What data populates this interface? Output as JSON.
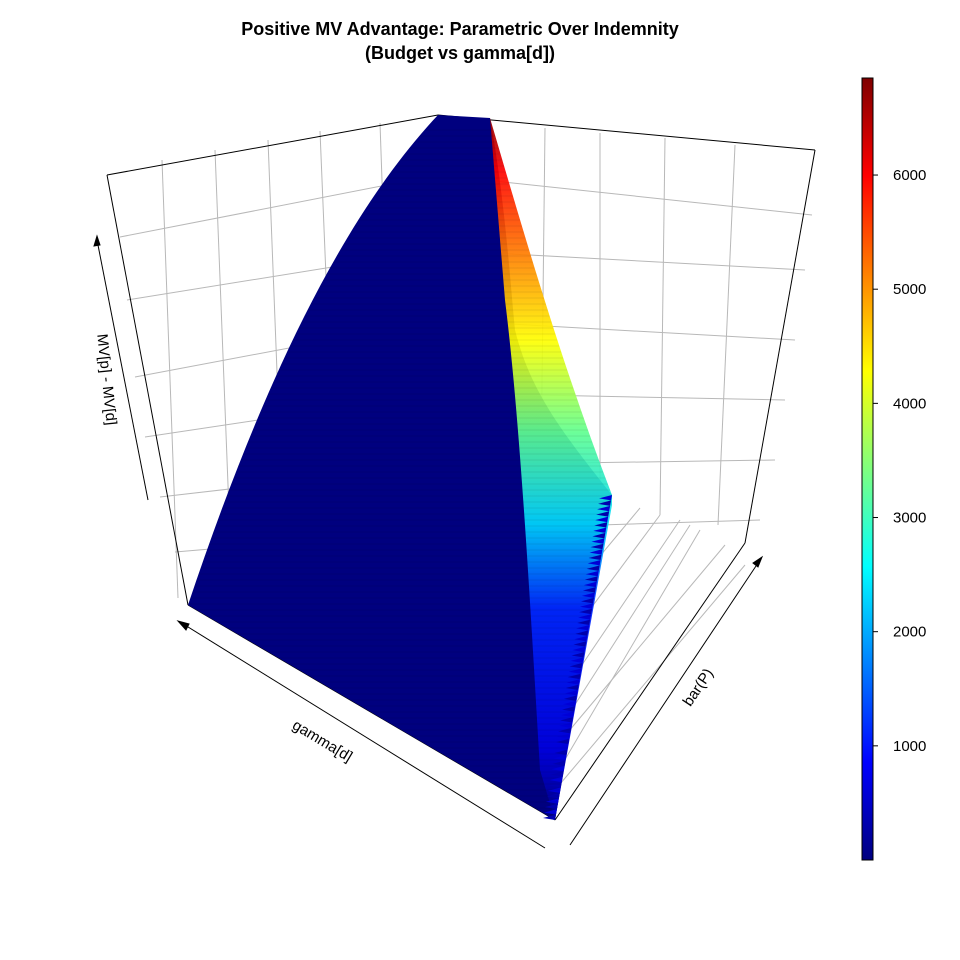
{
  "chart_data": {
    "type": "surface3d",
    "title": "Positive MV Advantage: Parametric Over Indemnity",
    "subtitle": "(Budget vs gamma[d])",
    "xlabel": "gamma[d]",
    "ylabel": "bar(P)",
    "zlabel": "MV[p] - MV[d]",
    "grid": true,
    "colorbar": {
      "position": "right",
      "palette": "jet",
      "range": [
        0,
        6850
      ],
      "ticks": [
        1000,
        2000,
        3000,
        4000,
        5000,
        6000
      ],
      "tick_labels": [
        "1000",
        "2000",
        "3000",
        "4000",
        "5000",
        "6000"
      ]
    },
    "z_range": [
      0,
      6850
    ]
  }
}
